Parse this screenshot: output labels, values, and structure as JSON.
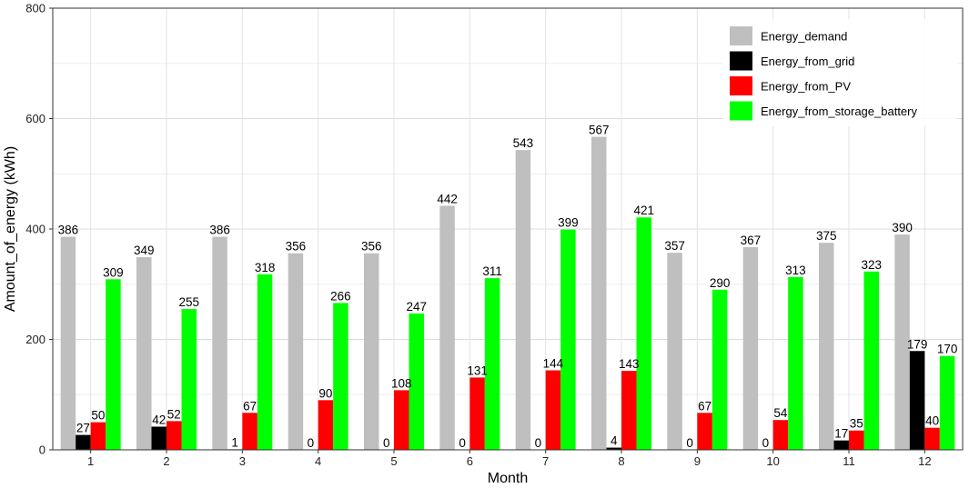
{
  "chart_data": {
    "type": "bar",
    "title": "",
    "xlabel": "Month",
    "ylabel": "Amount_of_energy (kWh)",
    "ylim": [
      0,
      800
    ],
    "yticks": [
      0,
      200,
      400,
      600,
      800
    ],
    "grid": true,
    "legend_position": "top-right",
    "categories": [
      "1",
      "2",
      "3",
      "4",
      "5",
      "6",
      "7",
      "8",
      "9",
      "10",
      "11",
      "12"
    ],
    "series": [
      {
        "name": "Energy_demand",
        "color": "#bfbfbf",
        "values": [
          386,
          349,
          386,
          356,
          356,
          442,
          543,
          567,
          357,
          367,
          375,
          390
        ]
      },
      {
        "name": "Energy_from_grid",
        "color": "#000000",
        "values": [
          27,
          42,
          1,
          0,
          0,
          0,
          0,
          4,
          0,
          0,
          17,
          179
        ]
      },
      {
        "name": "Energy_from_PV",
        "color": "#ff0000",
        "values": [
          50,
          52,
          67,
          90,
          108,
          131,
          144,
          143,
          67,
          54,
          35,
          40
        ]
      },
      {
        "name": "Energy_from_storage_battery",
        "color": "#00ff00",
        "values": [
          309,
          255,
          318,
          266,
          247,
          311,
          399,
          421,
          290,
          313,
          323,
          170
        ]
      }
    ]
  }
}
